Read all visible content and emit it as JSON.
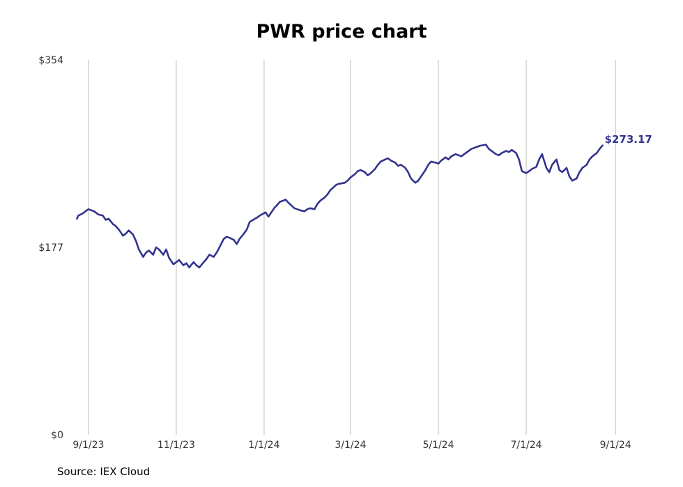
{
  "chart_data": {
    "type": "line",
    "title": "PWR price chart",
    "source": "Source: IEX Cloud",
    "xlabel": "",
    "ylabel": "",
    "ylim": [
      0,
      354
    ],
    "y_ticks": [
      {
        "value": 0,
        "label": "$0"
      },
      {
        "value": 177,
        "label": "$177"
      },
      {
        "value": 354,
        "label": "$354"
      }
    ],
    "xlim": [
      "2023-08-19",
      "2024-09-14"
    ],
    "x_ticks": [
      {
        "date": "2023-09-01",
        "label": "9/1/23"
      },
      {
        "date": "2023-11-01",
        "label": "11/1/23"
      },
      {
        "date": "2024-01-01",
        "label": "1/1/24"
      },
      {
        "date": "2024-03-01",
        "label": "3/1/24"
      },
      {
        "date": "2024-05-01",
        "label": "5/1/24"
      },
      {
        "date": "2024-07-01",
        "label": "7/1/24"
      },
      {
        "date": "2024-09-01",
        "label": "9/1/24"
      }
    ],
    "grid": {
      "vertical": true,
      "horizontal": false
    },
    "line_color": "#33338f",
    "end_label": "$273.17",
    "series": [
      {
        "points": [
          [
            "2023-08-24",
            204
          ],
          [
            "2023-08-25",
            207
          ],
          [
            "2023-08-28",
            209
          ],
          [
            "2023-08-30",
            211
          ],
          [
            "2023-09-01",
            213
          ],
          [
            "2023-09-05",
            211
          ],
          [
            "2023-09-08",
            208
          ],
          [
            "2023-09-11",
            207
          ],
          [
            "2023-09-13",
            203
          ],
          [
            "2023-09-15",
            204
          ],
          [
            "2023-09-18",
            199
          ],
          [
            "2023-09-20",
            197
          ],
          [
            "2023-09-22",
            194
          ],
          [
            "2023-09-25",
            188
          ],
          [
            "2023-09-27",
            190
          ],
          [
            "2023-09-29",
            193
          ],
          [
            "2023-10-02",
            189
          ],
          [
            "2023-10-04",
            183
          ],
          [
            "2023-10-06",
            175
          ],
          [
            "2023-10-09",
            168
          ],
          [
            "2023-10-11",
            172
          ],
          [
            "2023-10-13",
            174
          ],
          [
            "2023-10-16",
            170
          ],
          [
            "2023-10-18",
            177
          ],
          [
            "2023-10-20",
            175
          ],
          [
            "2023-10-23",
            170
          ],
          [
            "2023-10-25",
            175
          ],
          [
            "2023-10-27",
            167
          ],
          [
            "2023-10-30",
            161
          ],
          [
            "2023-11-01",
            163
          ],
          [
            "2023-11-03",
            165
          ],
          [
            "2023-11-06",
            160
          ],
          [
            "2023-11-08",
            162
          ],
          [
            "2023-11-10",
            158
          ],
          [
            "2023-11-13",
            163
          ],
          [
            "2023-11-15",
            160
          ],
          [
            "2023-11-17",
            158
          ],
          [
            "2023-11-20",
            163
          ],
          [
            "2023-11-22",
            166
          ],
          [
            "2023-11-24",
            170
          ],
          [
            "2023-11-27",
            168
          ],
          [
            "2023-11-29",
            172
          ],
          [
            "2023-12-01",
            177
          ],
          [
            "2023-12-04",
            185
          ],
          [
            "2023-12-06",
            187
          ],
          [
            "2023-12-08",
            186
          ],
          [
            "2023-12-11",
            184
          ],
          [
            "2023-12-13",
            180
          ],
          [
            "2023-12-15",
            185
          ],
          [
            "2023-12-18",
            190
          ],
          [
            "2023-12-20",
            194
          ],
          [
            "2023-12-22",
            201
          ],
          [
            "2023-12-27",
            205
          ],
          [
            "2023-12-29",
            207
          ],
          [
            "2024-01-02",
            210
          ],
          [
            "2024-01-04",
            206
          ],
          [
            "2024-01-08",
            214
          ],
          [
            "2024-01-10",
            217
          ],
          [
            "2024-01-12",
            220
          ],
          [
            "2024-01-16",
            222
          ],
          [
            "2024-01-18",
            219
          ],
          [
            "2024-01-22",
            214
          ],
          [
            "2024-01-24",
            213
          ],
          [
            "2024-01-26",
            212
          ],
          [
            "2024-01-29",
            211
          ],
          [
            "2024-01-31",
            213
          ],
          [
            "2024-02-02",
            214
          ],
          [
            "2024-02-05",
            213
          ],
          [
            "2024-02-07",
            218
          ],
          [
            "2024-02-09",
            221
          ],
          [
            "2024-02-12",
            224
          ],
          [
            "2024-02-14",
            227
          ],
          [
            "2024-02-16",
            231
          ],
          [
            "2024-02-20",
            236
          ],
          [
            "2024-02-22",
            237
          ],
          [
            "2024-02-26",
            238
          ],
          [
            "2024-02-28",
            240
          ],
          [
            "2024-03-01",
            243
          ],
          [
            "2024-03-04",
            246
          ],
          [
            "2024-03-06",
            249
          ],
          [
            "2024-03-08",
            250
          ],
          [
            "2024-03-11",
            248
          ],
          [
            "2024-03-13",
            245
          ],
          [
            "2024-03-15",
            247
          ],
          [
            "2024-03-18",
            251
          ],
          [
            "2024-03-20",
            255
          ],
          [
            "2024-03-22",
            258
          ],
          [
            "2024-03-25",
            260
          ],
          [
            "2024-03-27",
            261
          ],
          [
            "2024-03-29",
            259
          ],
          [
            "2024-04-01",
            257
          ],
          [
            "2024-04-03",
            254
          ],
          [
            "2024-04-05",
            255
          ],
          [
            "2024-04-08",
            252
          ],
          [
            "2024-04-10",
            248
          ],
          [
            "2024-04-12",
            242
          ],
          [
            "2024-04-15",
            238
          ],
          [
            "2024-04-17",
            240
          ],
          [
            "2024-04-19",
            244
          ],
          [
            "2024-04-22",
            250
          ],
          [
            "2024-04-24",
            255
          ],
          [
            "2024-04-26",
            258
          ],
          [
            "2024-04-29",
            257
          ],
          [
            "2024-05-01",
            256
          ],
          [
            "2024-05-03",
            259
          ],
          [
            "2024-05-06",
            262
          ],
          [
            "2024-05-08",
            260
          ],
          [
            "2024-05-10",
            263
          ],
          [
            "2024-05-13",
            265
          ],
          [
            "2024-05-15",
            264
          ],
          [
            "2024-05-17",
            263
          ],
          [
            "2024-05-20",
            266
          ],
          [
            "2024-05-22",
            268
          ],
          [
            "2024-05-24",
            270
          ],
          [
            "2024-05-28",
            272
          ],
          [
            "2024-05-30",
            273
          ],
          [
            "2024-06-03",
            274
          ],
          [
            "2024-06-05",
            270
          ],
          [
            "2024-06-07",
            268
          ],
          [
            "2024-06-10",
            265
          ],
          [
            "2024-06-12",
            264
          ],
          [
            "2024-06-14",
            266
          ],
          [
            "2024-06-17",
            268
          ],
          [
            "2024-06-19",
            267
          ],
          [
            "2024-06-21",
            269
          ],
          [
            "2024-06-24",
            266
          ],
          [
            "2024-06-26",
            260
          ],
          [
            "2024-06-28",
            249
          ],
          [
            "2024-07-01",
            247
          ],
          [
            "2024-07-03",
            249
          ],
          [
            "2024-07-05",
            251
          ],
          [
            "2024-07-08",
            253
          ],
          [
            "2024-07-10",
            260
          ],
          [
            "2024-07-12",
            265
          ],
          [
            "2024-07-15",
            252
          ],
          [
            "2024-07-17",
            248
          ],
          [
            "2024-07-19",
            255
          ],
          [
            "2024-07-22",
            260
          ],
          [
            "2024-07-24",
            250
          ],
          [
            "2024-07-26",
            248
          ],
          [
            "2024-07-29",
            252
          ],
          [
            "2024-07-31",
            244
          ],
          [
            "2024-08-02",
            240
          ],
          [
            "2024-08-05",
            242
          ],
          [
            "2024-08-07",
            248
          ],
          [
            "2024-08-09",
            252
          ],
          [
            "2024-08-12",
            255
          ],
          [
            "2024-08-14",
            260
          ],
          [
            "2024-08-16",
            263
          ],
          [
            "2024-08-19",
            266
          ],
          [
            "2024-08-21",
            270
          ],
          [
            "2024-08-23",
            273.17
          ]
        ]
      }
    ]
  }
}
